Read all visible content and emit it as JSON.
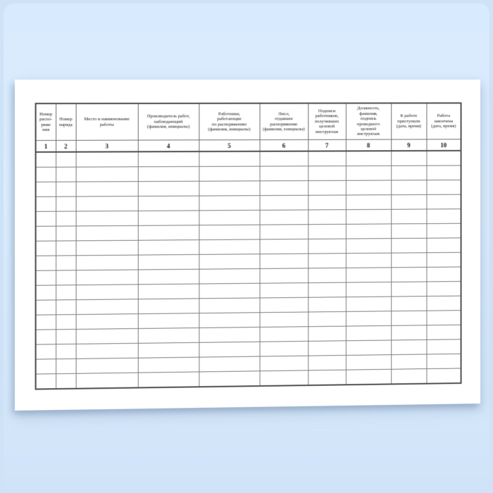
{
  "page": {
    "background_color": "#d7e9fc",
    "paper_color": "#ffffff",
    "grid_line_color": "#6f6f6f"
  },
  "table": {
    "columns": [
      {
        "number": "1",
        "label": "Номер\nраспо-\nряже\nния"
      },
      {
        "number": "2",
        "label": "Номер\nнаряда"
      },
      {
        "number": "3",
        "label": "Место и наименование\nработы"
      },
      {
        "number": "4",
        "label": "Производитель работ,\nнаблюдающий\n(фамилия, инициалы)"
      },
      {
        "number": "5",
        "label": "Работники,\nработающие\nпо распоряжению\n(фамилия, инициалы)"
      },
      {
        "number": "6",
        "label": "Лицо,\nотдавшее распоряжение\n(фамилия, инициалы)"
      },
      {
        "number": "7",
        "label": "Подписи\nработников,\nполучивших\nцелевой\nинструктаж"
      },
      {
        "number": "8",
        "label": "Должность,\nфамилия,\nподпись\nпроведшего\nцелевой\nинструктаж"
      },
      {
        "number": "9",
        "label": "К работе\nприступили\n(дата, время)"
      },
      {
        "number": "10",
        "label": "Работа\nзакончена\n(дата, время)"
      }
    ],
    "empty_row_count": 16
  }
}
